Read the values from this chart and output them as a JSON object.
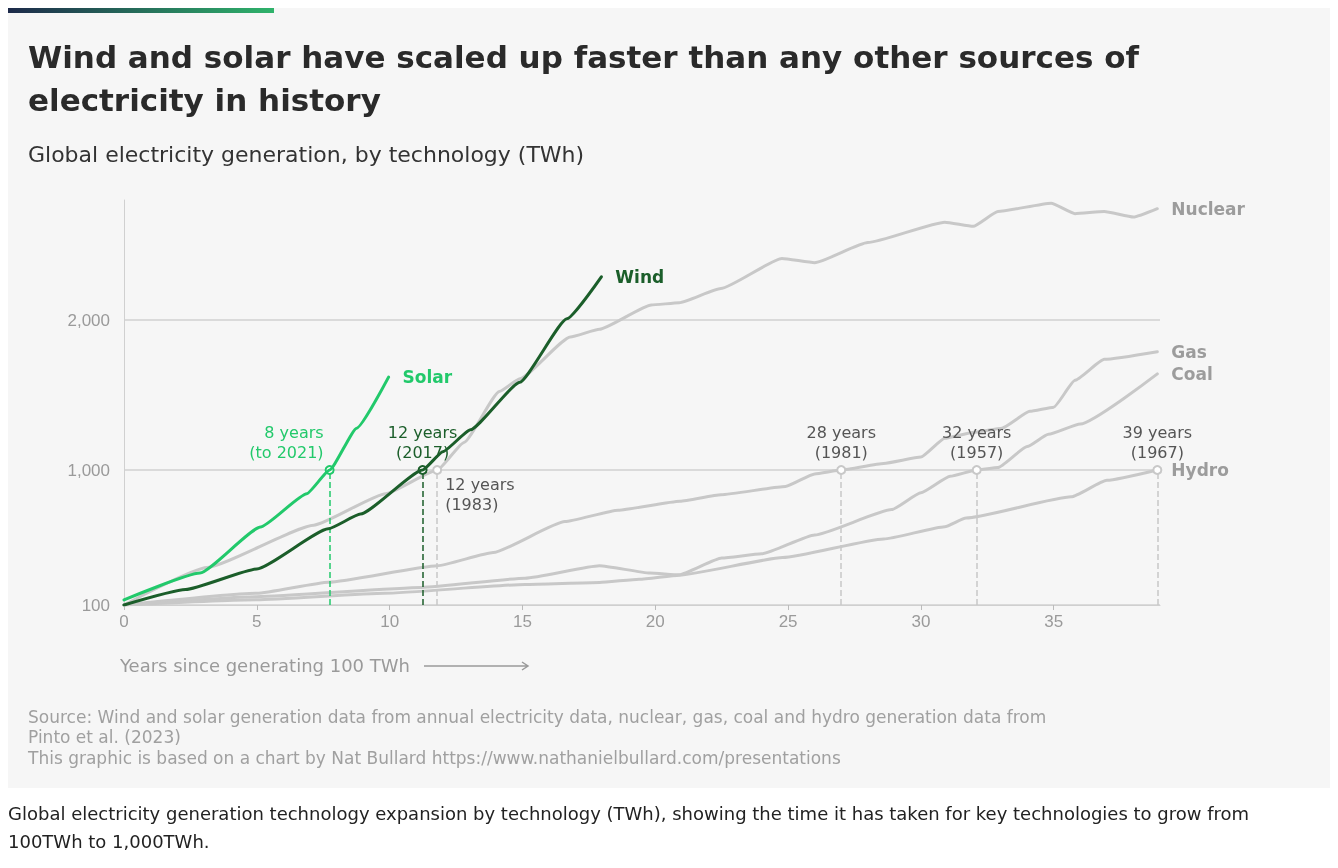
{
  "chart_data": {
    "type": "line",
    "title": "Wind and solar have scaled up faster than any other sources of electricity in history",
    "subtitle": "Global electricity generation, by technology (TWh)",
    "xlabel": "Years since generating 100 TWh",
    "xlim": [
      0,
      39
    ],
    "xticks": [
      0,
      5,
      10,
      15,
      20,
      25,
      30,
      35
    ],
    "ylim": [
      100,
      2800
    ],
    "yticks": [
      100,
      {
        "value": 1000,
        "label": "1,000"
      },
      {
        "value": 2000,
        "label": "2,000"
      }
    ],
    "grid": "y",
    "marker": "none",
    "line_style": "solid",
    "series": [
      {
        "name": "Solar",
        "color": "#22c96b",
        "x": [
          0,
          2.86,
          5.14,
          6.88,
          7.74,
          8.76,
          9.96
        ],
        "values": [
          134,
          313,
          620,
          842,
          1000,
          1279,
          1619
        ]
      },
      {
        "name": "Wind",
        "color": "#1b5e2a",
        "x": [
          0,
          2.32,
          5,
          7.69,
          8.9,
          11.24,
          12,
          13.04,
          14.9,
          16.67,
          17.97
        ],
        "values": [
          100,
          203,
          340,
          608,
          706,
          1000,
          1122,
          1268,
          1585,
          2008,
          2288
        ]
      },
      {
        "name": "Nuclear",
        "color": "#c8c8c8",
        "x": [
          0,
          3.12,
          7.14,
          9.85,
          11.79,
          12.8,
          14.13,
          14.9,
          16.8,
          17.9,
          19.85,
          20.9,
          22.47,
          24.77,
          26,
          28,
          30.9,
          31.97,
          32.9,
          34.9,
          35.8,
          36.9,
          38,
          38.9
        ],
        "values": [
          100,
          350,
          632,
          842,
          1000,
          1184,
          1524,
          1608,
          1887,
          1938,
          2100,
          2115,
          2210,
          2410,
          2382,
          2516,
          2652,
          2625,
          2723,
          2779,
          2709,
          2723,
          2686,
          2742
        ]
      },
      {
        "name": "Gas",
        "color": "#c8c8c8",
        "x": [
          0,
          5,
          7.7,
          11.8,
          13.9,
          16.6,
          18.6,
          20.93,
          22.47,
          24.9,
          26,
          27,
          28.6,
          30,
          30.9,
          32,
          33.05,
          34.1,
          35,
          35.8,
          36.9,
          38.9
        ],
        "values": [
          100,
          178,
          252,
          362,
          450,
          656,
          732,
          792,
          835,
          890,
          974,
          1000,
          1044,
          1086,
          1211,
          1252,
          1279,
          1391,
          1419,
          1598,
          1738,
          1789
        ]
      },
      {
        "name": "Coal",
        "color": "#c8c8c8",
        "x": [
          0,
          5,
          11.2,
          15.1,
          17.9,
          19.8,
          20.9,
          22.5,
          24,
          26,
          28.9,
          30,
          31.1,
          32.1,
          32.9,
          34,
          34.8,
          36,
          38.9
        ],
        "values": [
          100,
          155,
          217,
          279,
          362,
          313,
          301,
          413,
          441,
          567,
          736,
          848,
          958,
          1000,
          1016,
          1156,
          1238,
          1307,
          1641
        ]
      },
      {
        "name": "Hydro",
        "color": "#c8c8c8",
        "x": [
          0,
          5,
          9.8,
          15.1,
          17.9,
          19.4,
          20.9,
          24.8,
          28.6,
          30.9,
          31.7,
          35.66,
          37,
          38.9
        ],
        "values": [
          100,
          135,
          178,
          237,
          250,
          272,
          299,
          416,
          540,
          622,
          680,
          821,
          931,
          1000
        ]
      }
    ],
    "ref_lines": [
      {
        "axis": "x",
        "value": 7.74,
        "label": "8 years\n(to 2021)",
        "color": "#22c96b",
        "line_style": "dashed"
      },
      {
        "axis": "x",
        "value": 11.24,
        "label": "12 years\n(2017)",
        "color": "#1b5e2a",
        "line_style": "dashed"
      },
      {
        "axis": "x",
        "value": 11.79,
        "label": "12 years\n(1983)",
        "color": "#c8c8c8",
        "line_style": "dashed"
      },
      {
        "axis": "x",
        "value": 27,
        "label": "28 years\n(1981)",
        "color": "#c8c8c8",
        "line_style": "dashed"
      },
      {
        "axis": "x",
        "value": 32.1,
        "label": "32 years\n(1957)",
        "color": "#c8c8c8",
        "line_style": "dashed"
      },
      {
        "axis": "x",
        "value": 38.9,
        "label": "39 years\n(1967)",
        "color": "#c8c8c8",
        "line_style": "dashed"
      }
    ],
    "annotations": [
      "Source: Wind and solar generation data from annual electricity data, nuclear, gas, coal and hydro generation data from Pinto et al. (2023)",
      "This graphic is based on a chart by Nat Bullard https://www.nathanielbullard.com/presentations",
      "Global electricity generation technology expansion by technology (TWh), showing the time it has taken for key technologies to grow from 100TWh to 1,000TWh."
    ]
  }
}
